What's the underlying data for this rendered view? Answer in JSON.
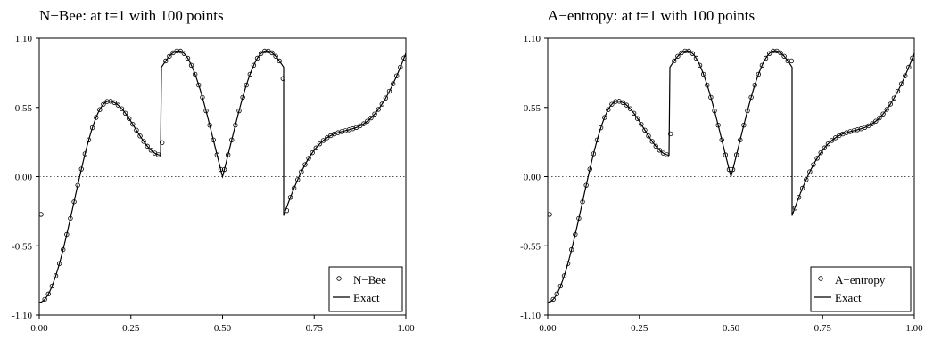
{
  "panels": [
    {
      "title": "N−Bee: at  t=1 with 100 points",
      "legend": {
        "markers_label": "N−Bee",
        "line_label": "Exact"
      }
    },
    {
      "title": "A−entropy: at  t=1 with 100 points",
      "legend": {
        "markers_label": "A−entropy",
        "line_label": "Exact"
      }
    }
  ],
  "chart_data": [
    {
      "type": "line",
      "title": "N−Bee: at  t=1 with 100 points",
      "xlabel": "",
      "ylabel": "",
      "xlim": [
        0,
        1
      ],
      "ylim": [
        -1.1,
        1.1
      ],
      "xticks": [
        "0.00",
        "0.25",
        "0.50",
        "0.75",
        "1.00"
      ],
      "yticks": [
        "-1.10",
        "-0.55",
        "0.00",
        "0.55",
        "1.10"
      ],
      "reference_line": {
        "y": 0,
        "style": "dotted"
      },
      "legend_position": "bottom-right",
      "series": [
        {
          "name": "N−Bee",
          "marker": "circle",
          "sample_points": 100,
          "x_range": [
            0,
            1
          ],
          "deviations_at_discontinuities": [
            {
              "x": 0.005,
              "y": -0.3
            },
            {
              "x": 0.335,
              "y": 0.27
            },
            {
              "x": 0.665,
              "y": 0.78
            },
            {
              "x": 0.675,
              "y": -0.27
            }
          ]
        },
        {
          "name": "Exact",
          "marker": "none",
          "key_points": [
            {
              "x": 0,
              "y": -1.0
            },
            {
              "x": 0.1,
              "y": 0.1
            },
            {
              "x": 0.19,
              "y": 0.6
            },
            {
              "x": 0.333,
              "y": 0.17
            },
            {
              "x": 0.334,
              "y": 0.87
            },
            {
              "x": 0.38,
              "y": 1.0
            },
            {
              "x": 0.5,
              "y": 0.0
            },
            {
              "x": 0.62,
              "y": 1.0
            },
            {
              "x": 0.666,
              "y": 0.87
            },
            {
              "x": 0.667,
              "y": -0.31
            },
            {
              "x": 0.85,
              "y": 0.35
            },
            {
              "x": 1.0,
              "y": 0.98
            }
          ]
        }
      ]
    },
    {
      "type": "line",
      "title": "A−entropy: at  t=1 with 100 points",
      "xlabel": "",
      "ylabel": "",
      "xlim": [
        0,
        1
      ],
      "ylim": [
        -1.1,
        1.1
      ],
      "xticks": [
        "0.00",
        "0.25",
        "0.50",
        "0.75",
        "1.00"
      ],
      "yticks": [
        "-1.10",
        "-0.55",
        "0.00",
        "0.55",
        "1.10"
      ],
      "reference_line": {
        "y": 0,
        "style": "dotted"
      },
      "legend_position": "bottom-right",
      "series": [
        {
          "name": "A−entropy",
          "marker": "circle",
          "sample_points": 100,
          "x_range": [
            0,
            1
          ],
          "deviations_at_discontinuities": [
            {
              "x": 0.005,
              "y": -0.3
            },
            {
              "x": 0.335,
              "y": 0.34
            },
            {
              "x": 0.665,
              "y": 0.92
            },
            {
              "x": 0.675,
              "y": -0.25
            }
          ]
        },
        {
          "name": "Exact",
          "marker": "none",
          "key_points": [
            {
              "x": 0,
              "y": -1.0
            },
            {
              "x": 0.1,
              "y": 0.1
            },
            {
              "x": 0.19,
              "y": 0.6
            },
            {
              "x": 0.333,
              "y": 0.17
            },
            {
              "x": 0.334,
              "y": 0.87
            },
            {
              "x": 0.38,
              "y": 1.0
            },
            {
              "x": 0.5,
              "y": 0.0
            },
            {
              "x": 0.62,
              "y": 1.0
            },
            {
              "x": 0.666,
              "y": 0.87
            },
            {
              "x": 0.667,
              "y": -0.31
            },
            {
              "x": 0.85,
              "y": 0.35
            },
            {
              "x": 1.0,
              "y": 0.98
            }
          ]
        }
      ]
    }
  ]
}
